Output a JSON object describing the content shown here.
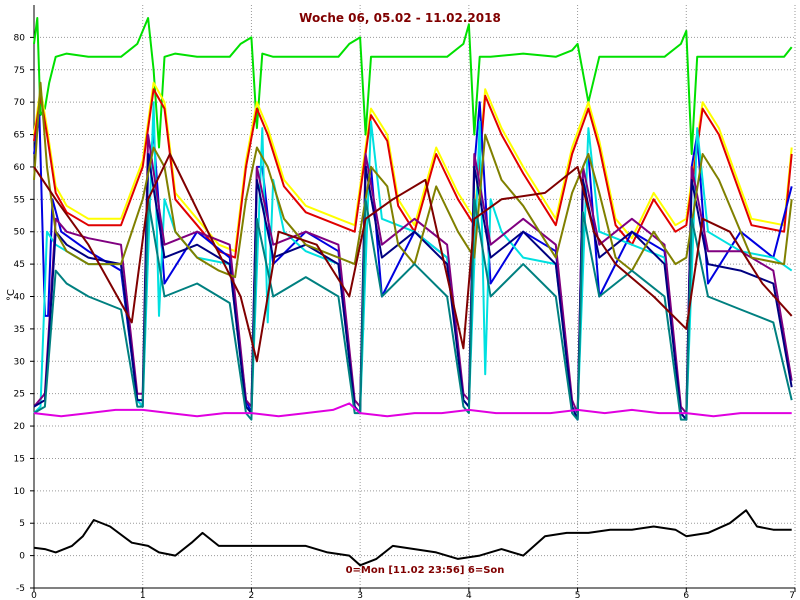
{
  "chart_data": {
    "type": "line",
    "title": "Woche 06, 05.02 - 11.02.2018",
    "xlabel": "0=Mon [11.02 23:56] 6=Son",
    "ylabel": "°C",
    "xlim": [
      0,
      7
    ],
    "ylim": [
      -5,
      85
    ],
    "xticks": [
      0,
      1,
      2,
      3,
      4,
      5,
      6,
      7
    ],
    "yticks": [
      -5,
      0,
      5,
      10,
      15,
      20,
      25,
      30,
      35,
      40,
      45,
      50,
      55,
      60,
      65,
      70,
      75,
      80
    ],
    "grid": true,
    "series": [
      {
        "color": "#00e000",
        "x": [
          0,
          0.03,
          0.06,
          0.1,
          0.14,
          0.2,
          0.3,
          0.5,
          0.8,
          0.95,
          1.05,
          1.1,
          1.15,
          1.2,
          1.3,
          1.5,
          1.8,
          1.9,
          2.0,
          2.05,
          2.1,
          2.2,
          2.5,
          2.8,
          2.9,
          3.0,
          3.05,
          3.1,
          3.2,
          3.5,
          3.8,
          3.95,
          4.0,
          4.05,
          4.1,
          4.2,
          4.5,
          4.8,
          4.95,
          5.0,
          5.1,
          5.2,
          5.5,
          5.8,
          5.95,
          6.0,
          6.05,
          6.1,
          6.2,
          6.5,
          6.8,
          6.9,
          6.97
        ],
        "y": [
          79,
          83,
          68,
          69,
          73,
          77,
          77.5,
          77,
          77,
          79,
          83,
          75,
          63,
          77,
          77.5,
          77,
          77,
          79,
          80,
          66,
          77.5,
          77,
          77,
          77,
          79,
          80,
          65,
          77,
          77,
          77,
          77,
          79,
          82,
          65,
          77,
          77,
          77.5,
          77,
          78,
          79,
          70,
          77,
          77,
          77,
          79,
          81,
          62,
          77,
          77,
          77,
          77,
          77,
          78.5
        ]
      },
      {
        "color": "#ffff00",
        "x": [
          0,
          0.06,
          0.12,
          0.2,
          0.3,
          0.5,
          0.8,
          1.0,
          1.1,
          1.2,
          1.3,
          1.5,
          1.7,
          1.85,
          1.95,
          2.05,
          2.15,
          2.3,
          2.5,
          2.8,
          2.95,
          3.1,
          3.25,
          3.35,
          3.5,
          3.7,
          3.9,
          4.05,
          4.15,
          4.3,
          4.5,
          4.8,
          4.95,
          5.1,
          5.2,
          5.35,
          5.5,
          5.7,
          5.9,
          6.0,
          6.15,
          6.3,
          6.6,
          6.9,
          6.97
        ],
        "y": [
          65,
          72,
          66,
          57,
          54,
          52,
          52,
          61,
          73,
          70,
          56,
          52,
          48,
          47,
          61,
          70,
          66,
          58,
          54,
          52,
          51,
          69,
          65,
          55,
          51,
          63,
          56,
          52,
          72,
          66,
          60,
          52,
          63,
          70,
          64,
          52,
          49,
          56,
          51,
          52,
          70,
          66,
          52,
          51,
          63
        ]
      },
      {
        "color": "#e00000",
        "x": [
          0,
          0.06,
          0.12,
          0.2,
          0.3,
          0.5,
          0.8,
          1.0,
          1.1,
          1.2,
          1.3,
          1.5,
          1.7,
          1.85,
          1.95,
          2.05,
          2.15,
          2.3,
          2.5,
          2.8,
          2.95,
          3.1,
          3.25,
          3.35,
          3.5,
          3.7,
          3.9,
          4.05,
          4.15,
          4.3,
          4.5,
          4.8,
          4.95,
          5.1,
          5.2,
          5.35,
          5.5,
          5.7,
          5.9,
          6.0,
          6.15,
          6.3,
          6.6,
          6.9,
          6.97
        ],
        "y": [
          64,
          71,
          65,
          56,
          53,
          51,
          51,
          60,
          72,
          69,
          55,
          51,
          47,
          46,
          60,
          69,
          65,
          57,
          53,
          51,
          50,
          68,
          64,
          54,
          50,
          62,
          55,
          51,
          71,
          65,
          59,
          51,
          62,
          69,
          63,
          51,
          48,
          55,
          50,
          51,
          69,
          65,
          51,
          50,
          62
        ]
      },
      {
        "color": "#0000e0",
        "x": [
          0,
          0.05,
          0.1,
          0.13,
          0.17,
          0.25,
          0.5,
          0.8,
          0.95,
          1.0,
          1.05,
          1.1,
          1.2,
          1.5,
          1.8,
          1.95,
          2.0,
          2.05,
          2.1,
          2.2,
          2.5,
          2.8,
          2.95,
          3.0,
          3.05,
          3.1,
          3.2,
          3.5,
          3.8,
          3.95,
          4.0,
          4.05,
          4.1,
          4.2,
          4.5,
          4.8,
          4.95,
          5.0,
          5.05,
          5.1,
          5.2,
          5.5,
          5.8,
          5.95,
          6.0,
          6.05,
          6.1,
          6.2,
          6.5,
          6.8,
          6.97
        ],
        "y": [
          62,
          68,
          37,
          37,
          55,
          50,
          47,
          44,
          24,
          23,
          60,
          65,
          42,
          50,
          46,
          24,
          22,
          60,
          60,
          45,
          50,
          47,
          23,
          22,
          60,
          60,
          40,
          50,
          46,
          24,
          23,
          60,
          70,
          42,
          50,
          47,
          23,
          21,
          60,
          62,
          40,
          50,
          47,
          22,
          21,
          60,
          65,
          42,
          50,
          46,
          57
        ]
      },
      {
        "color": "#00e0e0",
        "x": [
          0,
          0.06,
          0.12,
          0.2,
          0.3,
          0.5,
          0.8,
          0.95,
          1.0,
          1.1,
          1.15,
          1.2,
          1.3,
          1.5,
          1.8,
          1.95,
          2.0,
          2.1,
          2.15,
          2.2,
          2.3,
          2.5,
          2.8,
          2.95,
          3.0,
          3.1,
          3.2,
          3.5,
          3.8,
          3.95,
          4.0,
          4.1,
          4.15,
          4.2,
          4.3,
          4.5,
          4.8,
          4.95,
          5.0,
          5.1,
          5.2,
          5.5,
          5.8,
          5.95,
          6.0,
          6.1,
          6.2,
          6.5,
          6.8,
          6.97
        ],
        "y": [
          22,
          23,
          50,
          48,
          47,
          45,
          45,
          24,
          23,
          70,
          37,
          55,
          50,
          46,
          45,
          23,
          22,
          66,
          36,
          58,
          50,
          47,
          45,
          23,
          22,
          67,
          52,
          50,
          46,
          24,
          23,
          67,
          28,
          55,
          50,
          46,
          45,
          23,
          22,
          66,
          50,
          48,
          46,
          22,
          21,
          66,
          50,
          47,
          46,
          44
        ]
      },
      {
        "color": "#800080",
        "x": [
          0,
          0.1,
          0.2,
          0.3,
          0.5,
          0.8,
          0.95,
          1.0,
          1.05,
          1.2,
          1.5,
          1.8,
          1.95,
          2.0,
          2.05,
          2.2,
          2.5,
          2.8,
          2.95,
          3.0,
          3.05,
          3.2,
          3.5,
          3.8,
          3.95,
          4.0,
          4.05,
          4.2,
          4.5,
          4.8,
          4.95,
          5.0,
          5.05,
          5.2,
          5.5,
          5.8,
          5.95,
          6.0,
          6.05,
          6.2,
          6.5,
          6.8,
          6.97
        ],
        "y": [
          23,
          25,
          52,
          50,
          49,
          48,
          25,
          25,
          65,
          48,
          50,
          48,
          24,
          23,
          60,
          48,
          50,
          48,
          24,
          23,
          62,
          48,
          52,
          48,
          25,
          24,
          62,
          48,
          52,
          48,
          24,
          22,
          60,
          48,
          52,
          48,
          23,
          22,
          60,
          47,
          47,
          44,
          27
        ]
      },
      {
        "color": "#000080",
        "x": [
          0,
          0.1,
          0.2,
          0.3,
          0.5,
          0.8,
          0.95,
          1.0,
          1.05,
          1.2,
          1.5,
          1.8,
          1.95,
          2.0,
          2.05,
          2.2,
          2.5,
          2.8,
          2.95,
          3.0,
          3.05,
          3.2,
          3.5,
          3.8,
          3.95,
          4.0,
          4.05,
          4.2,
          4.5,
          4.8,
          4.95,
          5.0,
          5.05,
          5.2,
          5.5,
          5.8,
          5.95,
          6.0,
          6.05,
          6.2,
          6.5,
          6.8,
          6.97
        ],
        "y": [
          23,
          24,
          50,
          48,
          46,
          45,
          24,
          24,
          62,
          46,
          48,
          45,
          23,
          22,
          58,
          46,
          48,
          45,
          23,
          22,
          60,
          46,
          50,
          45,
          24,
          23,
          60,
          46,
          50,
          45,
          23,
          21,
          58,
          46,
          50,
          45,
          22,
          21,
          58,
          45,
          44,
          42,
          26
        ]
      },
      {
        "color": "#808000",
        "x": [
          0,
          0.06,
          0.12,
          0.2,
          0.3,
          0.5,
          0.8,
          1.0,
          1.1,
          1.2,
          1.3,
          1.5,
          1.7,
          1.85,
          1.95,
          2.05,
          2.15,
          2.3,
          2.5,
          2.8,
          2.95,
          3.1,
          3.25,
          3.35,
          3.5,
          3.7,
          3.9,
          4.05,
          4.15,
          4.3,
          4.5,
          4.8,
          4.95,
          5.1,
          5.2,
          5.35,
          5.5,
          5.7,
          5.9,
          6.0,
          6.15,
          6.3,
          6.6,
          6.9,
          6.97
        ],
        "y": [
          58,
          73,
          60,
          50,
          47,
          45,
          45,
          55,
          63,
          60,
          50,
          46,
          44,
          43,
          55,
          63,
          60,
          52,
          48,
          46,
          45,
          60,
          57,
          48,
          45,
          57,
          50,
          46,
          65,
          58,
          54,
          46,
          56,
          62,
          56,
          46,
          44,
          50,
          45,
          46,
          62,
          58,
          46,
          45,
          55
        ]
      },
      {
        "color": "#008080",
        "x": [
          0,
          0.1,
          0.2,
          0.3,
          0.5,
          0.8,
          0.95,
          1.0,
          1.05,
          1.2,
          1.5,
          1.8,
          1.95,
          2.0,
          2.05,
          2.2,
          2.5,
          2.8,
          2.95,
          3.0,
          3.05,
          3.2,
          3.5,
          3.8,
          3.95,
          4.0,
          4.05,
          4.2,
          4.5,
          4.8,
          4.95,
          5.0,
          5.05,
          5.2,
          5.5,
          5.8,
          5.95,
          6.0,
          6.05,
          6.2,
          6.5,
          6.8,
          6.97
        ],
        "y": [
          22,
          23,
          44,
          42,
          40,
          38,
          23,
          23,
          55,
          40,
          42,
          39,
          22,
          21,
          52,
          40,
          43,
          40,
          22,
          22,
          55,
          40,
          45,
          40,
          23,
          22,
          55,
          40,
          45,
          40,
          22,
          21,
          53,
          40,
          44,
          40,
          21,
          21,
          52,
          40,
          38,
          36,
          24
        ]
      },
      {
        "color": "#800000",
        "x": [
          0,
          0.2,
          0.5,
          0.9,
          1.05,
          1.25,
          1.6,
          1.9,
          2.05,
          2.25,
          2.6,
          2.9,
          3.05,
          3.3,
          3.6,
          3.95,
          4.05,
          4.3,
          4.7,
          5.0,
          5.15,
          5.35,
          5.7,
          6.0,
          6.15,
          6.4,
          6.7,
          6.97
        ],
        "y": [
          60,
          55,
          48,
          36,
          55,
          62,
          50,
          40,
          30,
          50,
          48,
          40,
          52,
          55,
          58,
          32,
          52,
          55,
          56,
          60,
          50,
          45,
          40,
          35,
          52,
          50,
          42,
          37
        ]
      },
      {
        "color": "#e000e0",
        "x": [
          0,
          0.25,
          0.5,
          0.75,
          1.0,
          1.25,
          1.5,
          1.75,
          2.0,
          2.25,
          2.5,
          2.75,
          2.9,
          3.0,
          3.25,
          3.5,
          3.75,
          4.0,
          4.25,
          4.5,
          4.75,
          5.0,
          5.25,
          5.5,
          5.75,
          6.0,
          6.25,
          6.5,
          6.75,
          6.97
        ],
        "y": [
          22,
          21.5,
          22,
          22.5,
          22.5,
          22,
          21.5,
          22,
          22,
          21.5,
          22,
          22.5,
          23.5,
          22,
          21.5,
          22,
          22,
          22.5,
          22,
          22,
          22,
          22.5,
          22,
          22.5,
          22,
          22,
          21.5,
          22,
          22,
          22
        ]
      },
      {
        "color": "#000000",
        "x": [
          0,
          0.1,
          0.2,
          0.35,
          0.45,
          0.55,
          0.7,
          0.9,
          1.05,
          1.15,
          1.3,
          1.45,
          1.55,
          1.7,
          1.9,
          2.1,
          2.3,
          2.5,
          2.7,
          2.9,
          3.0,
          3.15,
          3.3,
          3.5,
          3.7,
          3.9,
          4.1,
          4.3,
          4.5,
          4.7,
          4.9,
          5.1,
          5.3,
          5.5,
          5.7,
          5.9,
          6.0,
          6.2,
          6.4,
          6.55,
          6.65,
          6.8,
          6.97
        ],
        "y": [
          1.2,
          1,
          0.5,
          1.5,
          3,
          5.5,
          4.5,
          2,
          1.5,
          0.5,
          0,
          2,
          3.5,
          1.5,
          1.5,
          1.5,
          1.5,
          1.5,
          0.5,
          0,
          -1.5,
          -0.5,
          1.5,
          1,
          0.5,
          -0.5,
          0,
          1,
          0,
          3,
          3.5,
          3.5,
          4,
          4,
          4.5,
          4,
          3,
          3.5,
          5,
          7,
          4.5,
          4,
          4
        ]
      }
    ]
  }
}
